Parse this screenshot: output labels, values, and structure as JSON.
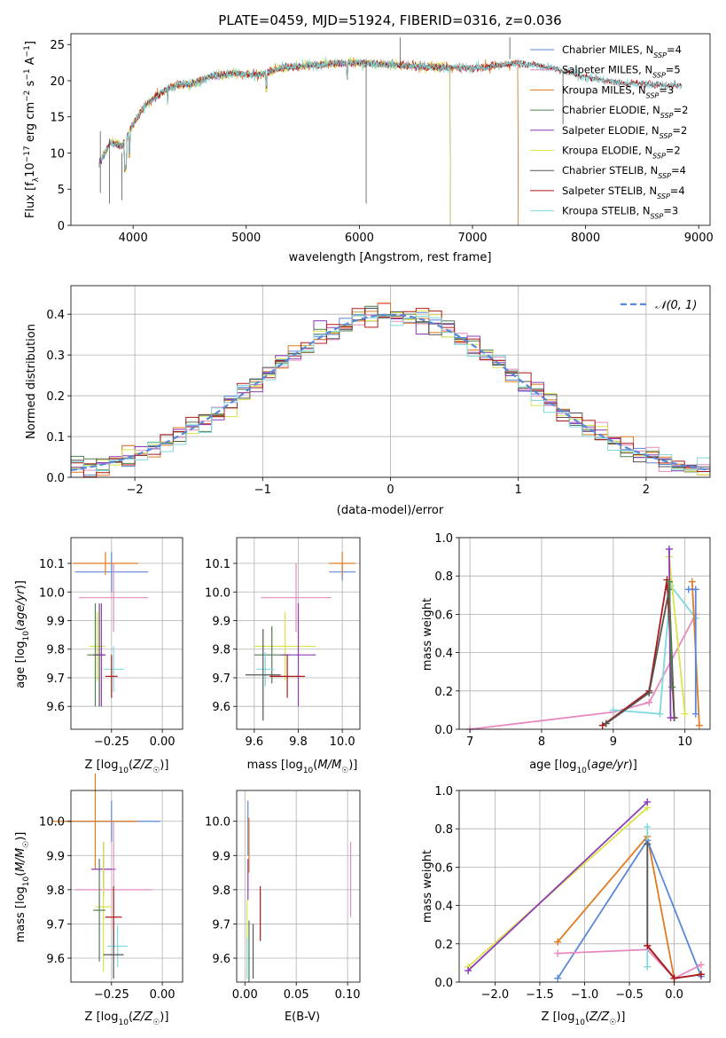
{
  "colors": {
    "Chabrier MILES": "#5b87d8",
    "Salpeter MILES": "#e68ac0",
    "Kroupa MILES": "#e07b20",
    "Chabrier ELODIE": "#4f7f4f",
    "Salpeter ELODIE": "#8e3ab5",
    "Kroupa ELODIE": "#d9e34c",
    "Chabrier STELIB": "#555555",
    "Salpeter STELIB": "#b01818",
    "Kroupa STELIB": "#7fd8dc"
  },
  "chart_data": [
    {
      "id": "spectrum",
      "type": "line",
      "title": "PLATE=0459, MJD=51924, FIBERID=0316, z=0.036",
      "xlabel": "wavelength [Angstrom, rest frame]",
      "ylabel": "Flux [f_λ10^-17 erg cm^-2 s^-1 A^-1]",
      "xlim": [
        3450,
        9100
      ],
      "ylim": [
        0,
        26.5
      ],
      "xticks": [
        4000,
        5000,
        6000,
        7000,
        8000,
        9000
      ],
      "yticks": [
        0,
        5,
        10,
        15,
        20,
        25
      ],
      "grid": false,
      "legend_position": "top-right",
      "continuum": {
        "x": [
          3700,
          3800,
          3900,
          4000,
          4100,
          4200,
          4300,
          4400,
          4500,
          4700,
          4900,
          5100,
          5300,
          5600,
          5900,
          6200,
          6500,
          6800,
          7100,
          7400,
          7700,
          8000,
          8300,
          8600,
          8850
        ],
        "y": [
          8.5,
          11.5,
          11.0,
          14.0,
          16.5,
          17.8,
          18.8,
          19.5,
          19.5,
          20.7,
          21.0,
          20.8,
          21.7,
          22.2,
          22.5,
          22.3,
          22.0,
          21.8,
          21.8,
          22.5,
          21.8,
          20.5,
          19.7,
          19.5,
          19.3
        ]
      },
      "series": [
        {
          "name": "Chabrier MILES",
          "nssp": "4",
          "end": 7400
        },
        {
          "name": "Salpeter MILES",
          "nssp": "5",
          "end": 7400
        },
        {
          "name": "Kroupa MILES",
          "nssp": "3",
          "end": 7400
        },
        {
          "name": "Chabrier ELODIE",
          "nssp": "2",
          "end": 6800
        },
        {
          "name": "Salpeter ELODIE",
          "nssp": "2",
          "end": 6800
        },
        {
          "name": "Kroupa ELODIE",
          "nssp": "2",
          "end": 6800
        },
        {
          "name": "Chabrier STELIB",
          "nssp": "4",
          "end": 8850
        },
        {
          "name": "Salpeter STELIB",
          "nssp": "4",
          "end": 8850
        },
        {
          "name": "Kroupa STELIB",
          "nssp": "3",
          "end": 8850
        }
      ],
      "legend_entries": [
        {
          "label": "Chabrier MILES, N",
          "sub": "SSP",
          "tail": "=4",
          "color": "#5b87d8"
        },
        {
          "label": "Salpeter MILES, N",
          "sub": "SSP",
          "tail": "=5",
          "color": "#e68ac0"
        },
        {
          "label": "Kroupa MILES, N",
          "sub": "SSP",
          "tail": "=3",
          "color": "#e07b20"
        },
        {
          "label": "Chabrier ELODIE, N",
          "sub": "SSP",
          "tail": "=2",
          "color": "#4f7f4f"
        },
        {
          "label": "Salpeter ELODIE, N",
          "sub": "SSP",
          "tail": "=2",
          "color": "#8e3ab5"
        },
        {
          "label": "Kroupa ELODIE, N",
          "sub": "SSP",
          "tail": "=2",
          "color": "#d9e34c"
        },
        {
          "label": "Chabrier STELIB, N",
          "sub": "SSP",
          "tail": "=4",
          "color": "#555555"
        },
        {
          "label": "Salpeter STELIB, N",
          "sub": "SSP",
          "tail": "=4",
          "color": "#b01818"
        },
        {
          "label": "Kroupa STELIB, N",
          "sub": "SSP",
          "tail": "=3",
          "color": "#7fd8dc"
        }
      ]
    },
    {
      "id": "residuals",
      "type": "histogram",
      "xlabel": "(data-model)/error",
      "ylabel": "Normed distribution",
      "xlim": [
        -2.5,
        2.5
      ],
      "ylim": [
        0,
        0.47
      ],
      "xticks": [
        -2,
        -1,
        0,
        1,
        2
      ],
      "yticks": [
        0.0,
        0.1,
        0.2,
        0.3,
        0.4
      ],
      "grid": true,
      "legend": "𝒩(0, 1)",
      "legend_position": "top-right",
      "bin_width": 0.1,
      "reference_curve": "normal(0,1)",
      "series_colors": [
        "#5b87d8",
        "#e68ac0",
        "#e07b20",
        "#4f7f4f",
        "#8e3ab5",
        "#d9e34c",
        "#555555",
        "#b01818",
        "#7fd8dc"
      ]
    },
    {
      "id": "age-vs-Z",
      "type": "errorbar",
      "xlabel": "Z [log₁₀(Z/Z☉)]",
      "ylabel": "age  [log₁₀(age/yr)]",
      "xlim": [
        -0.45,
        0.1
      ],
      "ylim": [
        9.52,
        10.19
      ],
      "xticks": [
        -0.25,
        0.0
      ],
      "xticklabels": [
        "−0.25",
        "0.00"
      ],
      "yticks": [
        9.6,
        9.7,
        9.8,
        9.9,
        10.0,
        10.1
      ],
      "grid": true,
      "points": [
        {
          "series": "Chabrier MILES",
          "x": -0.25,
          "y": 10.07,
          "xerr": 0.18,
          "yerr": 0.07
        },
        {
          "series": "Kroupa MILES",
          "x": -0.28,
          "y": 10.1,
          "xerr": 0.16,
          "yerr": 0.04
        },
        {
          "series": "Salpeter MILES",
          "x": -0.24,
          "y": 9.98,
          "xerr": 0.17,
          "yerr": 0.12
        },
        {
          "series": "Kroupa ELODIE",
          "x": -0.32,
          "y": 9.81,
          "xerr": 0.04,
          "yerr": 0.12
        },
        {
          "series": "Chabrier ELODIE",
          "x": -0.33,
          "y": 9.78,
          "xerr": 0.04,
          "yerr": 0.18
        },
        {
          "series": "Chabrier STELIB",
          "x": -0.31,
          "y": 9.78,
          "xerr": 0.03,
          "yerr": 0.18
        },
        {
          "series": "Salpeter ELODIE",
          "x": -0.3,
          "y": 9.78,
          "xerr": 0.02,
          "yerr": 0.18
        },
        {
          "series": "Kroupa STELIB",
          "x": -0.24,
          "y": 9.73,
          "xerr": 0.05,
          "yerr": 0.08
        },
        {
          "series": "Salpeter STELIB",
          "x": -0.25,
          "y": 9.705,
          "xerr": 0.03,
          "yerr": 0.075
        }
      ]
    },
    {
      "id": "age-vs-mass",
      "type": "errorbar",
      "xlabel": "mass [log₁₀(M/M☉)]",
      "xlim": [
        9.52,
        10.08
      ],
      "ylim": [
        9.52,
        10.19
      ],
      "xticks": [
        9.6,
        9.8,
        10.0
      ],
      "yticks": [
        9.6,
        9.7,
        9.8,
        9.9,
        10.0,
        10.1
      ],
      "grid": true,
      "points": [
        {
          "series": "Chabrier MILES",
          "x": 10.0,
          "y": 10.07,
          "xerr": 0.06,
          "yerr": 0.03
        },
        {
          "series": "Kroupa MILES",
          "x": 10.0,
          "y": 10.1,
          "xerr": 0.06,
          "yerr": 0.04
        },
        {
          "series": "Salpeter MILES",
          "x": 9.79,
          "y": 9.98,
          "xerr": 0.16,
          "yerr": 0.12
        },
        {
          "series": "Kroupa ELODIE",
          "x": 9.74,
          "y": 9.81,
          "xerr": 0.14,
          "yerr": 0.12
        },
        {
          "series": "Chabrier ELODIE",
          "x": 9.68,
          "y": 9.78,
          "xerr": 0.08,
          "yerr": 0.1
        },
        {
          "series": "Salpeter ELODIE",
          "x": 9.8,
          "y": 9.78,
          "xerr": 0.08,
          "yerr": 0.18
        },
        {
          "series": "Kroupa STELIB",
          "x": 9.65,
          "y": 9.73,
          "xerr": 0.04,
          "yerr": 0.06
        },
        {
          "series": "Chabrier STELIB",
          "x": 9.64,
          "y": 9.71,
          "xerr": 0.08,
          "yerr": 0.16
        },
        {
          "series": "Salpeter STELIB",
          "x": 9.75,
          "y": 9.705,
          "xerr": 0.08,
          "yerr": 0.075
        }
      ]
    },
    {
      "id": "massweight-vs-age",
      "type": "line",
      "xlabel": "age  [log₁₀(age/yr)]",
      "ylabel": "mass weight",
      "xlim": [
        6.85,
        10.35
      ],
      "ylim": [
        0,
        1.0
      ],
      "xticks": [
        7,
        8,
        9,
        10
      ],
      "yticks": [
        0.0,
        0.2,
        0.4,
        0.6,
        0.8,
        1.0
      ],
      "grid": true,
      "series": [
        {
          "name": "Salpeter MILES",
          "x": [
            7.0,
            9.0,
            9.5,
            10.15
          ],
          "y": [
            0.0,
            0.09,
            0.14,
            0.6
          ]
        },
        {
          "name": "Kroupa STELIB",
          "x": [
            9.0,
            9.65,
            9.8,
            10.15
          ],
          "y": [
            0.1,
            0.08,
            0.75,
            0.58
          ]
        },
        {
          "name": "Salpeter STELIB",
          "x": [
            8.85,
            9.5,
            9.75,
            9.85
          ],
          "y": [
            0.02,
            0.2,
            0.78,
            0.06
          ]
        },
        {
          "name": "Chabrier STELIB",
          "x": [
            8.9,
            9.5,
            9.78,
            9.85
          ],
          "y": [
            0.03,
            0.19,
            0.73,
            0.06
          ]
        },
        {
          "name": "Kroupa ELODIE",
          "x": [
            9.78,
            10.0
          ],
          "y": [
            0.9,
            0.08
          ]
        },
        {
          "name": "Salpeter ELODIE",
          "x": [
            9.78,
            9.8
          ],
          "y": [
            0.94,
            0.06
          ]
        },
        {
          "name": "Chabrier ELODIE",
          "x": [
            9.78,
            9.82
          ],
          "y": [
            0.77,
            0.22
          ]
        },
        {
          "name": "Kroupa MILES",
          "x": [
            10.1,
            10.2
          ],
          "y": [
            0.77,
            0.02
          ]
        },
        {
          "name": "Chabrier MILES",
          "x": [
            10.05,
            10.15,
            10.15
          ],
          "y": [
            0.73,
            0.73,
            0.08
          ]
        }
      ]
    },
    {
      "id": "mass-vs-Z",
      "type": "errorbar",
      "xlabel": "Z [log₁₀(Z/Z☉)]",
      "ylabel": "mass [log₁₀(M/M☉)]",
      "xlim": [
        -0.45,
        0.1
      ],
      "ylim": [
        9.53,
        10.09
      ],
      "xticks": [
        -0.25,
        0.0
      ],
      "xticklabels": [
        "−0.25",
        "0.00"
      ],
      "yticks": [
        9.6,
        9.7,
        9.8,
        9.9,
        10.0
      ],
      "grid": true,
      "points": [
        {
          "series": "Chabrier MILES",
          "x": -0.25,
          "y": 10.0,
          "xerr": 0.24,
          "yerr": 0.06
        },
        {
          "series": "Kroupa MILES",
          "x": -0.33,
          "y": 10.0,
          "xerr": 0.21,
          "yerr": 0.14
        },
        {
          "series": "Salpeter ELODIE",
          "x": -0.29,
          "y": 9.86,
          "xerr": 0.06,
          "yerr": 0.08
        },
        {
          "series": "Salpeter MILES",
          "x": -0.24,
          "y": 9.8,
          "xerr": 0.19,
          "yerr": 0.2
        },
        {
          "series": "Kroupa ELODIE",
          "x": -0.29,
          "y": 9.75,
          "xerr": 0.04,
          "yerr": 0.19
        },
        {
          "series": "Chabrier ELODIE",
          "x": -0.31,
          "y": 9.74,
          "xerr": 0.03,
          "yerr": 0.15
        },
        {
          "series": "Salpeter STELIB",
          "x": -0.24,
          "y": 9.72,
          "xerr": 0.04,
          "yerr": 0.09
        },
        {
          "series": "Kroupa STELIB",
          "x": -0.22,
          "y": 9.635,
          "xerr": 0.05,
          "yerr": 0.06
        },
        {
          "series": "Chabrier STELIB",
          "x": -0.24,
          "y": 9.61,
          "xerr": 0.05,
          "yerr": 0.07
        }
      ]
    },
    {
      "id": "mass-vs-ebv",
      "type": "errorbar",
      "xlabel": "E(B-V)",
      "xlim": [
        -0.008,
        0.112
      ],
      "ylim": [
        9.53,
        10.09
      ],
      "xticks": [
        0.0,
        0.05,
        0.1
      ],
      "xticklabels": [
        "0.00",
        "0.05",
        "0.10"
      ],
      "yticks": [
        9.6,
        9.7,
        9.8,
        9.9,
        10.0
      ],
      "grid": true,
      "points": [
        {
          "series": "Chabrier MILES",
          "x": 0.003,
          "y": 9.98,
          "xerr": 0,
          "yerr": 0.08
        },
        {
          "series": "Kroupa MILES",
          "x": 0.004,
          "y": 9.93,
          "xerr": 0,
          "yerr": 0.08
        },
        {
          "series": "Salpeter MILES",
          "x": 0.103,
          "y": 9.83,
          "xerr": 0,
          "yerr": 0.11
        },
        {
          "series": "Salpeter ELODIE",
          "x": 0.003,
          "y": 9.83,
          "xerr": 0,
          "yerr": 0.06
        },
        {
          "series": "Kroupa ELODIE",
          "x": 0.002,
          "y": 9.67,
          "xerr": 0,
          "yerr": 0.1
        },
        {
          "series": "Chabrier ELODIE",
          "x": 0.004,
          "y": 9.62,
          "xerr": 0,
          "yerr": 0.09
        },
        {
          "series": "Salpeter STELIB",
          "x": 0.015,
          "y": 9.73,
          "xerr": 0,
          "yerr": 0.08
        },
        {
          "series": "Chabrier STELIB",
          "x": 0.008,
          "y": 9.62,
          "xerr": 0,
          "yerr": 0.08
        },
        {
          "series": "Kroupa STELIB",
          "x": 0.002,
          "y": 9.6,
          "xerr": 0,
          "yerr": 0.06
        }
      ]
    },
    {
      "id": "massweight-vs-Z",
      "type": "line",
      "xlabel": "Z [log₁₀(Z/Z☉)]",
      "ylabel": "mass weight",
      "xlim": [
        -2.4,
        0.4
      ],
      "ylim": [
        0,
        1.0
      ],
      "xticks": [
        -2.0,
        -1.5,
        -1.0,
        -0.5,
        0.0
      ],
      "xticklabels": [
        "−2.0",
        "−1.5",
        "−1.0",
        "−0.5",
        "0.0"
      ],
      "yticks": [
        0.0,
        0.2,
        0.4,
        0.6,
        0.8,
        1.0
      ],
      "grid": true,
      "series": [
        {
          "name": "Kroupa ELODIE",
          "x": [
            -2.3,
            -0.3
          ],
          "y": [
            0.08,
            0.91
          ]
        },
        {
          "name": "Salpeter ELODIE",
          "x": [
            -2.3,
            -0.3
          ],
          "y": [
            0.06,
            0.94
          ]
        },
        {
          "name": "Kroupa MILES",
          "x": [
            -1.3,
            -0.3,
            0.0
          ],
          "y": [
            0.21,
            0.76,
            0.02
          ]
        },
        {
          "name": "Chabrier MILES",
          "x": [
            -1.3,
            -0.3,
            0.3
          ],
          "y": [
            0.02,
            0.74,
            0.03
          ]
        },
        {
          "name": "Salpeter MILES",
          "x": [
            -1.3,
            -0.3,
            0.0,
            0.3
          ],
          "y": [
            0.15,
            0.17,
            0.02,
            0.09
          ]
        },
        {
          "name": "Kroupa STELIB",
          "x": [
            -0.3,
            -0.3
          ],
          "y": [
            0.81,
            0.08
          ]
        },
        {
          "name": "Chabrier STELIB",
          "x": [
            -0.3,
            -0.3,
            0.0,
            0.3
          ],
          "y": [
            0.72,
            0.19,
            0.02,
            0.04
          ]
        },
        {
          "name": "Salpeter STELIB",
          "x": [
            -0.3,
            0.0,
            0.3
          ],
          "y": [
            0.19,
            0.02,
            0.04
          ]
        }
      ]
    }
  ]
}
